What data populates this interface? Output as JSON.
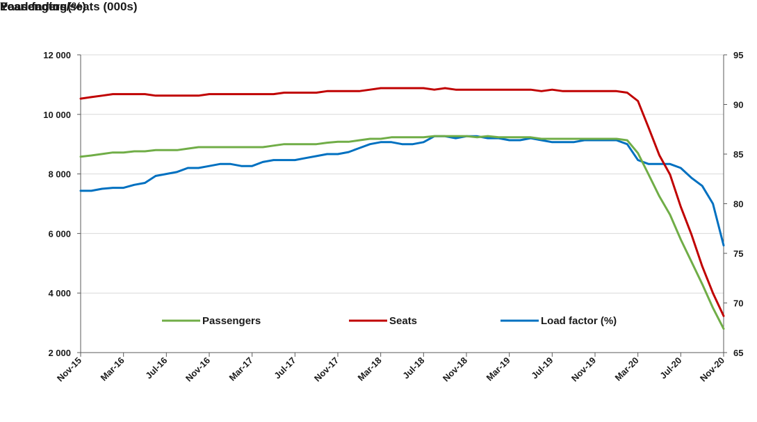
{
  "chart_data": {
    "type": "line",
    "y_left_label": "Passengers/seats (000s)",
    "y_right_label": "Load factor (%)",
    "xlabel": "Year ending",
    "x_tick_labels": [
      "Nov-15",
      "Mar-16",
      "Jul-16",
      "Nov-16",
      "Mar-17",
      "Jul-17",
      "Nov-17",
      "Mar-18",
      "Jul-18",
      "Nov-18",
      "Mar-19",
      "Jul-19",
      "Nov-19",
      "Mar-20",
      "Jul-20",
      "Nov-20"
    ],
    "y_left_ticks": [
      "2 000",
      "4 000",
      "6 000",
      "8 000",
      "10 000",
      "12 000"
    ],
    "y_right_ticks": [
      "65",
      "70",
      "75",
      "80",
      "85",
      "90",
      "95"
    ],
    "y_left_lim": [
      2000,
      12000
    ],
    "y_right_lim": [
      65,
      95
    ],
    "grid": "horizontal",
    "legend_position": "bottom-center",
    "months": [
      "Nov-15",
      "Dec-15",
      "Jan-16",
      "Feb-16",
      "Mar-16",
      "Apr-16",
      "May-16",
      "Jun-16",
      "Jul-16",
      "Aug-16",
      "Sep-16",
      "Oct-16",
      "Nov-16",
      "Dec-16",
      "Jan-17",
      "Feb-17",
      "Mar-17",
      "Apr-17",
      "May-17",
      "Jun-17",
      "Jul-17",
      "Aug-17",
      "Sep-17",
      "Oct-17",
      "Nov-17",
      "Dec-17",
      "Jan-18",
      "Feb-18",
      "Mar-18",
      "Apr-18",
      "May-18",
      "Jun-18",
      "Jul-18",
      "Aug-18",
      "Sep-18",
      "Oct-18",
      "Nov-18",
      "Dec-18",
      "Jan-19",
      "Feb-19",
      "Mar-19",
      "Apr-19",
      "May-19",
      "Jun-19",
      "Jul-19",
      "Aug-19",
      "Sep-19",
      "Oct-19",
      "Nov-19",
      "Dec-19",
      "Jan-20",
      "Feb-20",
      "Mar-20",
      "Apr-20",
      "May-20",
      "Jun-20",
      "Jul-20",
      "Aug-20",
      "Sep-20",
      "Oct-20",
      "Nov-20"
    ],
    "series": [
      {
        "name": "Passengers",
        "axis": "left",
        "color": "#70ad47",
        "values": [
          8580,
          8620,
          8670,
          8720,
          8720,
          8760,
          8760,
          8800,
          8800,
          8800,
          8850,
          8900,
          8900,
          8900,
          8900,
          8900,
          8900,
          8900,
          8950,
          9000,
          9000,
          9000,
          9000,
          9050,
          9080,
          9080,
          9130,
          9180,
          9180,
          9230,
          9230,
          9230,
          9230,
          9270,
          9270,
          9270,
          9270,
          9230,
          9270,
          9230,
          9230,
          9230,
          9230,
          9180,
          9180,
          9180,
          9180,
          9180,
          9180,
          9180,
          9180,
          9130,
          8700,
          7980,
          7250,
          6630,
          5800,
          5050,
          4300,
          3500,
          2800
        ]
      },
      {
        "name": "Seats",
        "axis": "left",
        "color": "#c00000",
        "values": [
          10530,
          10580,
          10630,
          10680,
          10680,
          10680,
          10680,
          10630,
          10630,
          10630,
          10630,
          10630,
          10680,
          10680,
          10680,
          10680,
          10680,
          10680,
          10680,
          10730,
          10730,
          10730,
          10730,
          10780,
          10780,
          10780,
          10780,
          10830,
          10880,
          10880,
          10880,
          10880,
          10880,
          10830,
          10880,
          10830,
          10830,
          10830,
          10830,
          10830,
          10830,
          10830,
          10830,
          10780,
          10830,
          10780,
          10780,
          10780,
          10780,
          10780,
          10780,
          10730,
          10450,
          9550,
          8630,
          7980,
          6900,
          5960,
          4900,
          4000,
          3230
        ]
      },
      {
        "name": "Load factor (%)",
        "axis": "right",
        "color": "#0070c0",
        "values": [
          81.3,
          81.3,
          81.5,
          81.6,
          81.6,
          81.9,
          82.1,
          82.8,
          83.0,
          83.2,
          83.6,
          83.6,
          83.8,
          84.0,
          84.0,
          83.8,
          83.8,
          84.2,
          84.4,
          84.4,
          84.4,
          84.6,
          84.8,
          85.0,
          85.0,
          85.2,
          85.6,
          86.0,
          86.2,
          86.2,
          86.0,
          86.0,
          86.2,
          86.8,
          86.8,
          86.6,
          86.8,
          86.8,
          86.6,
          86.6,
          86.4,
          86.4,
          86.6,
          86.4,
          86.2,
          86.2,
          86.2,
          86.4,
          86.4,
          86.4,
          86.4,
          86.0,
          84.4,
          84.0,
          84.0,
          84.0,
          83.6,
          82.6,
          81.8,
          80.0,
          75.8
        ]
      }
    ]
  }
}
